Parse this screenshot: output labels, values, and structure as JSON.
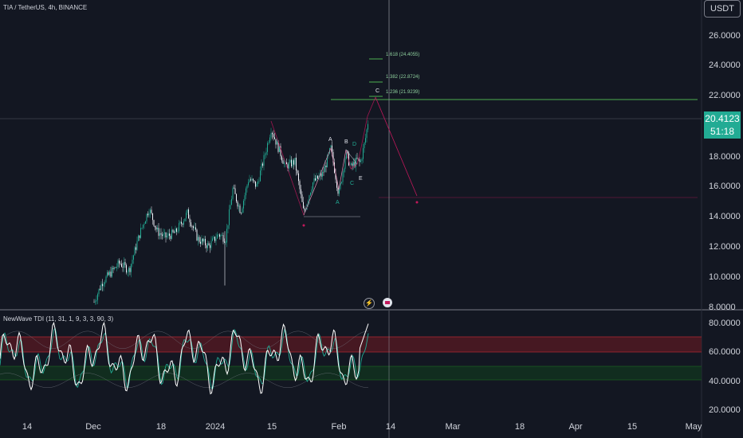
{
  "symbol": {
    "title": "TIA / TetherUS, 4h, BINANCE"
  },
  "currency": "USDT",
  "price_axis": [
    "26.0000",
    "24.0000",
    "22.0000",
    "20.0000",
    "18.0000",
    "16.0000",
    "14.0000",
    "12.0000",
    "10.0000",
    "8.0000"
  ],
  "current_price": {
    "value": "20.4123",
    "countdown": "51:18"
  },
  "indicator": {
    "title": "NewWave TDI (11, 31, 1, 9, 3, 3, 90, 3)",
    "axis": [
      "80.0000",
      "60.0000",
      "40.0000",
      "20.0000"
    ]
  },
  "time_axis": [
    "14",
    "Dec",
    "18",
    "2024",
    "15",
    "Feb",
    "14",
    "Mar",
    "18",
    "Apr",
    "15",
    "May"
  ],
  "fib_levels": [
    "1.618 (24.4055)",
    "1.382 (22.8724)",
    "1.236 (21.9239)"
  ],
  "wave_labels": [
    "A",
    "B",
    "D",
    "C",
    "E",
    "A",
    "C"
  ],
  "colors": {
    "background": "#131722",
    "up": "#22ab94",
    "down": "#f0f3fa",
    "accent": "#22ab94",
    "fib": "#4caf50",
    "projection": "#c2185b"
  },
  "icons": [
    "flash-icon",
    "event-icon"
  ]
}
